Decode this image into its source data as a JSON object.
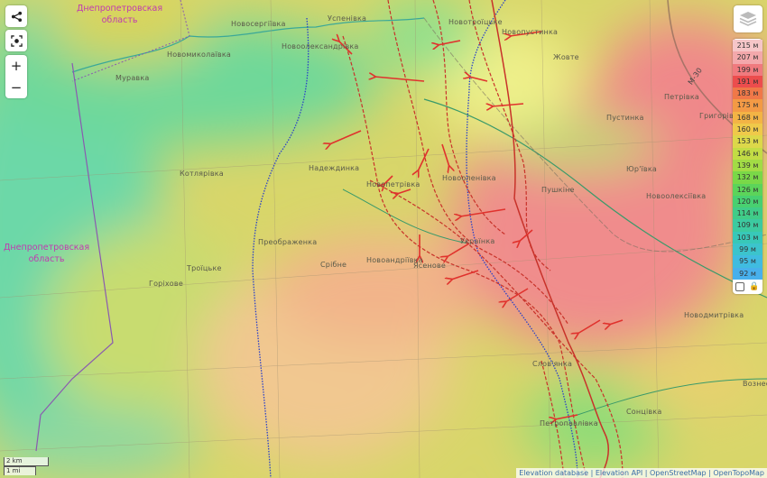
{
  "map": {
    "regions": [
      "Днепропетровская\nобласть",
      "Днепропетровская\nобласть"
    ],
    "places": [
      "Новосергіївка",
      "Успенівка",
      "Новотроїцьке",
      "Новопустинка",
      "Новоолександрівка",
      "Новомиколаївка",
      "Муравка",
      "Жовте",
      "Петрівка",
      "Пустинка",
      "Григорівка",
      "Надеждинка",
      "Новопетрівка",
      "Новооленівка",
      "Котлярівка",
      "Юр'ївка",
      "Пушкіне",
      "Новоолексіївка",
      "Преображенка",
      "Українка",
      "Срібне",
      "Новоандріївка",
      "Ясенове",
      "Троїцьке",
      "Горіхове",
      "Новодмитрівка",
      "Слов'янка",
      "Петропавлівка",
      "Сонцівка",
      "Вознесенка"
    ],
    "road_label": "М-30"
  },
  "controls": {
    "share_icon": "share-icon",
    "locate_icon": "locate-icon",
    "zoom_in": "+",
    "zoom_out": "−",
    "layers_icon": "layers-icon"
  },
  "legend": {
    "items": [
      "215 м",
      "207 м",
      "199 м",
      "191 м",
      "183 м",
      "175 м",
      "168 м",
      "160 м",
      "153 м",
      "146 м",
      "139 м",
      "132 м",
      "126 м",
      "120 м",
      "114 м",
      "109 м",
      "103 м",
      "99 м",
      "95 м",
      "92 м"
    ],
    "colors": [
      "#f6c6c8",
      "#f3a8ab",
      "#f07a7e",
      "#ec4d4d",
      "#f07848",
      "#f39a45",
      "#f3b445",
      "#efc94a",
      "#dcd84a",
      "#c2dc45",
      "#a2dc45",
      "#7ad848",
      "#5cd45a",
      "#48d070",
      "#40cc88",
      "#3ccaa0",
      "#38c8b8",
      "#3cc4cc",
      "#40bce0",
      "#48b0ec"
    ],
    "lock_icon": "lock-icon"
  },
  "scale": {
    "km": "2 km",
    "mi": "1 mi"
  },
  "attribution": [
    "Elevation database",
    "Elevation API",
    "OpenStreetMap",
    "OpenTopoMap"
  ]
}
